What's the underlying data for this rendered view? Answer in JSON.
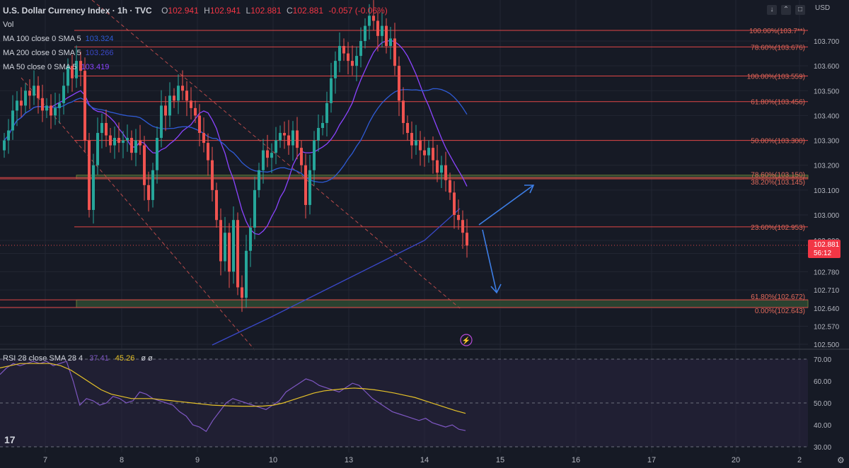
{
  "header": {
    "title": "U.S. Dollar Currency Index · 1h · TVC",
    "open_label": "O",
    "open": "102.941",
    "high_label": "H",
    "high": "102.941",
    "low_label": "L",
    "low": "102.881",
    "close_label": "C",
    "close": "102.881",
    "change": "-0.057 (-0.06%)"
  },
  "legend": [
    {
      "label": "Vol",
      "value": ""
    },
    {
      "label": "MA 100 close 0 SMA 5",
      "value": "103.324"
    },
    {
      "label": "MA 200 close 0 SMA 5",
      "value": "103.266"
    },
    {
      "label": "MA 50 close 0 SMA 5",
      "value": "103.419"
    }
  ],
  "currency": "USD",
  "price_badge": {
    "price": "102.881",
    "countdown": "56:12"
  },
  "rsi_legend": {
    "label": "RSI 28 close SMA 28 4",
    "rsi": "37.41",
    "sma": "45.26",
    "extra": "ø ø"
  },
  "colors": {
    "background": "#161a25",
    "grid": "#222632",
    "text": "#b2b5be",
    "up": "#26a69a",
    "down": "#ef5350",
    "fib": "#e04646",
    "ma50": "#8b44ff",
    "ma100": "#2f5bd6",
    "ma200": "#3a48c8",
    "rsi": "#7e57c2",
    "rsi_sma": "#e6c229",
    "arrow": "#3d7ee6"
  },
  "chart_data": [
    {
      "type": "candlestick",
      "title": "U.S. Dollar Currency Index · 1h · TVC",
      "x_ticks": [
        "7",
        "8",
        "9",
        "10",
        "13",
        "14",
        "15",
        "16",
        "17",
        "20",
        "2"
      ],
      "y_ticks": [
        "102.500",
        "102.570",
        "102.640",
        "102.710",
        "102.780",
        "102.850",
        "102.900",
        "103.000",
        "103.100",
        "103.200",
        "103.300",
        "103.400",
        "103.500",
        "103.600",
        "103.700"
      ],
      "fib_levels": [
        {
          "label": "100.00%(103.7**)",
          "value": 103.742
        },
        {
          "label": "78.60%(103.676)",
          "value": 103.676
        },
        {
          "label": "100.00%(103.559)",
          "value": 103.559
        },
        {
          "label": "61.80%(103.456)",
          "value": 103.456
        },
        {
          "label": "50.00%(103.300)",
          "value": 103.3
        },
        {
          "label": "78.60%(103.150)",
          "value": 103.15
        },
        {
          "label": "38.20%(103.145)",
          "value": 103.145
        },
        {
          "label": "23.60%(102.953)",
          "value": 102.953
        },
        {
          "label": "61.80%(102.672)",
          "value": 102.672
        },
        {
          "label": "0.00%(102.643)",
          "value": 102.643
        }
      ],
      "zones": [
        {
          "from": 103.145,
          "to": 103.16
        },
        {
          "from": 102.643,
          "to": 102.672
        }
      ],
      "last_price": 102.881,
      "candle_closes": [
        103.3,
        103.34,
        103.42,
        103.46,
        103.44,
        103.5,
        103.48,
        103.52,
        103.47,
        103.42,
        103.44,
        103.4,
        103.43,
        103.45,
        103.52,
        103.6,
        103.55,
        103.62,
        103.58,
        103.3,
        103.02,
        103.2,
        103.33,
        103.37,
        103.32,
        103.28,
        103.31,
        103.29,
        103.3,
        103.31,
        103.25,
        103.3,
        103.28,
        103.12,
        103.06,
        103.18,
        103.31,
        103.44,
        103.4,
        103.48,
        103.46,
        103.52,
        103.5,
        103.46,
        103.43,
        103.4,
        103.33,
        103.29,
        103.22,
        103.1,
        102.98,
        102.82,
        102.93,
        102.78,
        102.98,
        102.72,
        102.68,
        102.86,
        102.95,
        103.1,
        103.18,
        103.26,
        103.23,
        103.25,
        103.3,
        103.33,
        103.32,
        103.28,
        103.34,
        103.27,
        103.2,
        103.04,
        103.18,
        103.3,
        103.35,
        103.37,
        103.45,
        103.55,
        103.62,
        103.68,
        103.65,
        103.62,
        103.6,
        103.64,
        103.7,
        103.76,
        103.8,
        103.78,
        103.72,
        103.76,
        103.68,
        103.71,
        103.6,
        103.46,
        103.37,
        103.33,
        103.28,
        103.3,
        103.26,
        103.24,
        103.27,
        103.22,
        103.17,
        103.2,
        103.14,
        103.09,
        103.0,
        102.98,
        102.93,
        102.88
      ],
      "annotation": "projected paths: up toward 103.12, down toward 102.69"
    },
    {
      "type": "line",
      "title": "RSI 28 close SMA 28 4",
      "y_ticks": [
        "30.00",
        "40.00",
        "50.00",
        "60.00",
        "70.00"
      ],
      "ylim": [
        30,
        70
      ],
      "bands": [
        30,
        50,
        70
      ],
      "series": [
        {
          "name": "RSI",
          "last": 37.41,
          "values": [
            63,
            66,
            68,
            67,
            68,
            69,
            68,
            69,
            67,
            68,
            69,
            60,
            49,
            52,
            51,
            49,
            50,
            53,
            52,
            50,
            51,
            55,
            54,
            52,
            51,
            50,
            49,
            46,
            44,
            40,
            39,
            37,
            42,
            46,
            50,
            52,
            51,
            50,
            49,
            48,
            47,
            49,
            51,
            55,
            57,
            59,
            61,
            60,
            58,
            57,
            56,
            55,
            57,
            59,
            58,
            55,
            52,
            50,
            48,
            46,
            45,
            44,
            43,
            42,
            43,
            41,
            40,
            39,
            40,
            38,
            37.41
          ]
        },
        {
          "name": "SMA",
          "last": 45.26,
          "values": [
            66,
            67,
            68,
            68,
            68,
            68,
            67,
            65,
            62,
            59,
            56,
            54,
            53,
            52,
            52,
            52,
            51.5,
            51,
            50.5,
            50,
            49.5,
            49,
            48.8,
            48.6,
            48.5,
            48.5,
            48.6,
            49,
            50,
            51.5,
            53,
            54.5,
            55.5,
            56,
            56.5,
            56.8,
            56.5,
            56,
            55.3,
            54.5,
            53.5,
            52.5,
            51,
            49.5,
            48,
            46.5,
            45.26
          ]
        }
      ]
    }
  ]
}
